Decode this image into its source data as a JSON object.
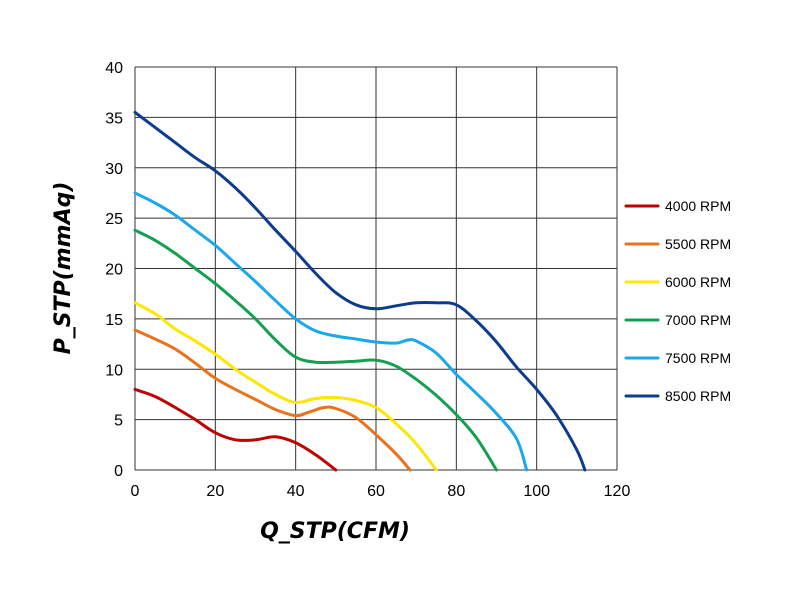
{
  "chart_data": {
    "type": "line",
    "title": "",
    "xlabel": "Q_STP(CFM)",
    "ylabel": "P_STP(mmAq)",
    "xlim": [
      0,
      120
    ],
    "ylim": [
      0,
      40
    ],
    "xticks": [
      0,
      20,
      40,
      60,
      80,
      100,
      120
    ],
    "yticks": [
      0,
      5,
      10,
      15,
      20,
      25,
      30,
      35,
      40
    ],
    "grid": true,
    "legend_position": "right",
    "series": [
      {
        "name": "4000 RPM",
        "color": "#c00000",
        "points": [
          [
            0,
            8
          ],
          [
            5,
            7.3
          ],
          [
            10,
            6.2
          ],
          [
            15,
            5
          ],
          [
            20,
            3.7
          ],
          [
            25,
            3
          ],
          [
            30,
            3
          ],
          [
            35,
            3.3
          ],
          [
            40,
            2.7
          ],
          [
            45,
            1.5
          ],
          [
            50,
            0
          ]
        ]
      },
      {
        "name": "5500 RPM",
        "color": "#e8731c",
        "points": [
          [
            0,
            13.9
          ],
          [
            5,
            13
          ],
          [
            10,
            12
          ],
          [
            15,
            10.6
          ],
          [
            20,
            9.1
          ],
          [
            25,
            8
          ],
          [
            30,
            7
          ],
          [
            35,
            6
          ],
          [
            40,
            5.4
          ],
          [
            43,
            5.7
          ],
          [
            47,
            6.2
          ],
          [
            50,
            6.1
          ],
          [
            55,
            5.2
          ],
          [
            60,
            3.5
          ],
          [
            65,
            1.6
          ],
          [
            68.5,
            0
          ]
        ]
      },
      {
        "name": "6000 RPM",
        "color": "#ffe600",
        "points": [
          [
            0,
            16.6
          ],
          [
            5,
            15.5
          ],
          [
            10,
            14
          ],
          [
            15,
            12.8
          ],
          [
            20,
            11.5
          ],
          [
            25,
            10
          ],
          [
            30,
            8.7
          ],
          [
            35,
            7.5
          ],
          [
            40,
            6.7
          ],
          [
            45,
            7.1
          ],
          [
            50,
            7.2
          ],
          [
            55,
            6.9
          ],
          [
            60,
            6.2
          ],
          [
            65,
            4.6
          ],
          [
            70,
            2.6
          ],
          [
            75,
            0
          ]
        ]
      },
      {
        "name": "7000 RPM",
        "color": "#14a050",
        "points": [
          [
            0,
            23.8
          ],
          [
            5,
            22.8
          ],
          [
            10,
            21.5
          ],
          [
            15,
            20
          ],
          [
            20,
            18.5
          ],
          [
            25,
            16.8
          ],
          [
            30,
            15
          ],
          [
            35,
            12.9
          ],
          [
            40,
            11.2
          ],
          [
            45,
            10.7
          ],
          [
            50,
            10.7
          ],
          [
            55,
            10.8
          ],
          [
            60,
            10.9
          ],
          [
            65,
            10.3
          ],
          [
            70,
            9
          ],
          [
            75,
            7.4
          ],
          [
            80,
            5.5
          ],
          [
            85,
            3.2
          ],
          [
            90,
            0
          ]
        ]
      },
      {
        "name": "7500 RPM",
        "color": "#1aa7ec",
        "points": [
          [
            0,
            27.5
          ],
          [
            5,
            26.5
          ],
          [
            10,
            25.3
          ],
          [
            15,
            23.8
          ],
          [
            20,
            22.3
          ],
          [
            25,
            20.5
          ],
          [
            30,
            18.7
          ],
          [
            35,
            16.8
          ],
          [
            40,
            15
          ],
          [
            45,
            13.8
          ],
          [
            50,
            13.3
          ],
          [
            55,
            13
          ],
          [
            60,
            12.7
          ],
          [
            65,
            12.6
          ],
          [
            68,
            12.9
          ],
          [
            70,
            12.8
          ],
          [
            75,
            11.6
          ],
          [
            80,
            9.5
          ],
          [
            85,
            7.6
          ],
          [
            90,
            5.6
          ],
          [
            95,
            3.1
          ],
          [
            97.5,
            0
          ]
        ]
      },
      {
        "name": "8500 RPM",
        "color": "#0c3c8c",
        "points": [
          [
            0,
            35.5
          ],
          [
            5,
            34
          ],
          [
            10,
            32.5
          ],
          [
            15,
            31
          ],
          [
            20,
            29.7
          ],
          [
            25,
            28
          ],
          [
            30,
            26
          ],
          [
            35,
            23.8
          ],
          [
            40,
            21.7
          ],
          [
            45,
            19.5
          ],
          [
            50,
            17.6
          ],
          [
            55,
            16.4
          ],
          [
            60,
            16
          ],
          [
            65,
            16.3
          ],
          [
            70,
            16.6
          ],
          [
            75,
            16.6
          ],
          [
            80,
            16.4
          ],
          [
            85,
            14.8
          ],
          [
            90,
            12.7
          ],
          [
            95,
            10.2
          ],
          [
            100,
            8
          ],
          [
            105,
            5.4
          ],
          [
            110,
            2
          ],
          [
            112,
            0
          ]
        ]
      }
    ]
  }
}
